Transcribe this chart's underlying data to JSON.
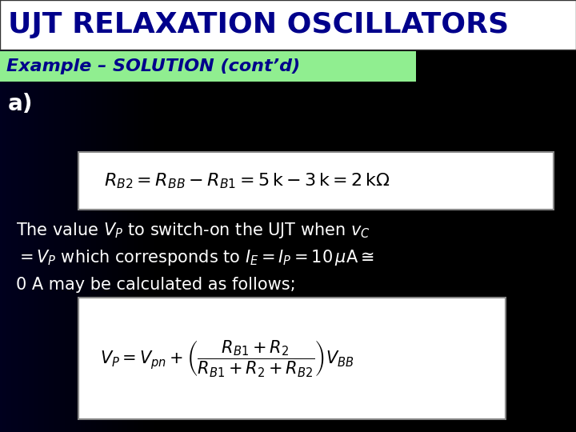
{
  "title": "UJT RELAXATION OSCILLATORS",
  "title_bg": "#ffffff",
  "title_color": "#00008b",
  "subtitle": "Example – SOLUTION (cont’d)",
  "subtitle_bg": "#90ee90",
  "subtitle_color": "#00008b",
  "part_label": "a)",
  "eq1_latex": "$R_{B2} = R_{BB} - R_{B1} = 5\\,\\mathrm{k} - 3\\,\\mathrm{k} = 2\\,\\mathrm{k}\\Omega$",
  "body_text_line1": "The value $V_P$ to switch-on the UJT when $v_C$",
  "body_text_line2": "$= V_P$ which corresponds to $I_E = I_P = 10\\,\\mu\\mathrm{A} \\cong$",
  "body_text_line3": "0 A may be calculated as follows;",
  "eq2_latex": "$V_P = V_{pn} + \\left(\\dfrac{R_{B1} + R_2}{R_{B1} + R_2 + R_{B2}}\\right)V_{BB}$",
  "bg_color": "#000000",
  "text_color": "#ffffff",
  "eq_box_bg": "#ffffff",
  "eq_box_border": "#aaaaaa"
}
